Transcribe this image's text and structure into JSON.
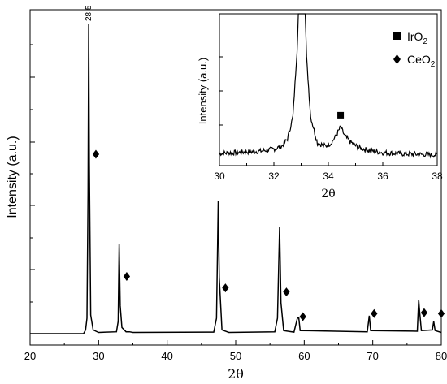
{
  "chart_data": [
    {
      "type": "line",
      "xlabel": "2θ",
      "ylabel": "Intensity (a.u.)",
      "xlim": [
        20,
        80
      ],
      "xticks": [
        "20",
        "30",
        "40",
        "50",
        "60",
        "70",
        "80"
      ],
      "ylim": [
        0,
        1.0
      ],
      "y_tick_labels": false,
      "grid": false,
      "peak_label": "28.5",
      "series": [
        {
          "points": [
            [
              20,
              0.0
            ],
            [
              27.8,
              0.0
            ],
            [
              28.1,
              0.012
            ],
            [
              28.3,
              0.05
            ],
            [
              28.45,
              0.45
            ],
            [
              28.55,
              1.0
            ],
            [
              28.65,
              0.55
            ],
            [
              28.85,
              0.06
            ],
            [
              29.2,
              0.012
            ],
            [
              30,
              0.004
            ],
            [
              32.6,
              0.006
            ],
            [
              32.85,
              0.04
            ],
            [
              33.0,
              0.29
            ],
            [
              33.15,
              0.09
            ],
            [
              33.4,
              0.02
            ],
            [
              34.0,
              0.006
            ],
            [
              34.5,
              0.006
            ],
            [
              35,
              0.004
            ],
            [
              46.8,
              0.005
            ],
            [
              47.2,
              0.05
            ],
            [
              47.45,
              0.43
            ],
            [
              47.6,
              0.18
            ],
            [
              48.0,
              0.012
            ],
            [
              49,
              0.004
            ],
            [
              55.7,
              0.006
            ],
            [
              56.1,
              0.05
            ],
            [
              56.4,
              0.345
            ],
            [
              56.6,
              0.1
            ],
            [
              57.0,
              0.01
            ],
            [
              58.5,
              0.005
            ],
            [
              59.0,
              0.05
            ],
            [
              59.2,
              0.052
            ],
            [
              59.4,
              0.01
            ],
            [
              69.2,
              0.006
            ],
            [
              69.5,
              0.058
            ],
            [
              69.7,
              0.01
            ],
            [
              76.5,
              0.008
            ],
            [
              76.7,
              0.11
            ],
            [
              76.85,
              0.07
            ],
            [
              77.1,
              0.01
            ],
            [
              78.7,
              0.012
            ],
            [
              78.9,
              0.04
            ],
            [
              79.1,
              0.01
            ],
            [
              80,
              0.004
            ]
          ]
        }
      ],
      "markers": [
        {
          "label": "CeO2",
          "symbol": "diamond",
          "points": [
            [
              29.6,
              0.58
            ],
            [
              34.1,
              0.185
            ],
            [
              48.5,
              0.148
            ],
            [
              57.4,
              0.135
            ],
            [
              59.8,
              0.055
            ],
            [
              70.2,
              0.065
            ],
            [
              77.5,
              0.068
            ],
            [
              80.0,
              0.065
            ]
          ]
        }
      ]
    },
    {
      "type": "line",
      "xlabel": "2θ",
      "ylabel": "Intensity (a.u.)",
      "xlim": [
        30,
        38
      ],
      "xticks": [
        "30",
        "32",
        "34",
        "36",
        "38"
      ],
      "ylim": [
        0,
        1.0
      ],
      "y_tick_labels": false,
      "grid": false,
      "series": [
        {
          "points": [
            [
              30,
              0.05
            ],
            [
              30.5,
              0.055
            ],
            [
              31,
              0.06
            ],
            [
              31.5,
              0.065
            ],
            [
              32,
              0.08
            ],
            [
              32.3,
              0.1
            ],
            [
              32.5,
              0.15
            ],
            [
              32.7,
              0.3
            ],
            [
              32.85,
              0.75
            ],
            [
              32.9,
              1.0
            ],
            [
              33.15,
              1.0
            ],
            [
              33.2,
              0.7
            ],
            [
              33.35,
              0.3
            ],
            [
              33.6,
              0.12
            ],
            [
              33.9,
              0.1
            ],
            [
              34.1,
              0.12
            ],
            [
              34.25,
              0.16
            ],
            [
              34.45,
              0.23
            ],
            [
              34.6,
              0.17
            ],
            [
              34.8,
              0.13
            ],
            [
              35.1,
              0.09
            ],
            [
              35.5,
              0.07
            ],
            [
              36,
              0.055
            ],
            [
              37,
              0.045
            ],
            [
              38,
              0.04
            ]
          ]
        }
      ],
      "markers": [
        {
          "label": "IrO2",
          "symbol": "square",
          "points": [
            [
              34.45,
              0.31
            ]
          ]
        }
      ]
    }
  ],
  "legend": {
    "placement": "top-right",
    "items": [
      {
        "symbol": "square",
        "text": "IrO",
        "sub": "2"
      },
      {
        "symbol": "diamond",
        "text": "CeO",
        "sub": "2"
      }
    ]
  }
}
